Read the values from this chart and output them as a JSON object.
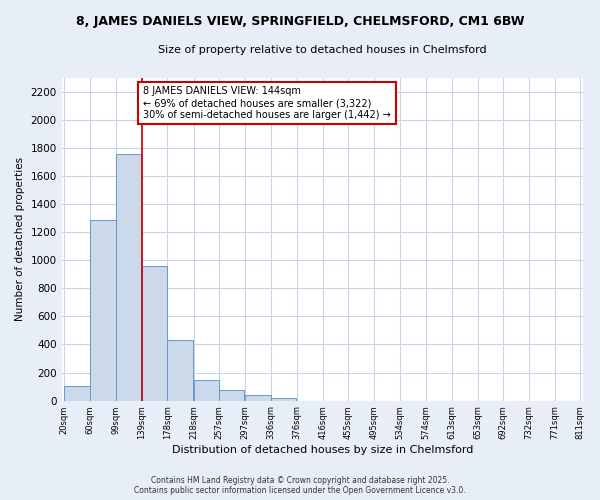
{
  "title_line1": "8, JAMES DANIELS VIEW, SPRINGFIELD, CHELMSFORD, CM1 6BW",
  "title_line2": "Size of property relative to detached houses in Chelmsford",
  "xlabel": "Distribution of detached houses by size in Chelmsford",
  "ylabel": "Number of detached properties",
  "bar_left_edges": [
    20,
    60,
    99,
    139,
    178,
    218,
    257,
    297,
    336,
    376,
    416,
    455,
    495,
    534,
    574,
    613,
    653,
    692,
    732,
    771
  ],
  "bar_heights": [
    105,
    1285,
    1760,
    960,
    430,
    150,
    75,
    40,
    20,
    0,
    0,
    0,
    0,
    0,
    0,
    0,
    0,
    0,
    0,
    0
  ],
  "bin_width": 39,
  "bar_color": "#ccd9ea",
  "bar_edge_color": "#6699cc",
  "reference_line_x": 139,
  "ylim": [
    0,
    2300
  ],
  "yticks": [
    0,
    200,
    400,
    600,
    800,
    1000,
    1200,
    1400,
    1600,
    1800,
    2000,
    2200
  ],
  "x_tick_labels": [
    "20sqm",
    "60sqm",
    "99sqm",
    "139sqm",
    "178sqm",
    "218sqm",
    "257sqm",
    "297sqm",
    "336sqm",
    "376sqm",
    "416sqm",
    "455sqm",
    "495sqm",
    "534sqm",
    "574sqm",
    "613sqm",
    "653sqm",
    "692sqm",
    "732sqm",
    "771sqm",
    "811sqm"
  ],
  "annotation_text": "8 JAMES DANIELS VIEW: 144sqm\n← 69% of detached houses are smaller (3,322)\n30% of semi-detached houses are larger (1,442) →",
  "annotation_box_color": "#ffffff",
  "annotation_box_edge_color": "#cc0000",
  "grid_color": "#c8d4e8",
  "bg_color": "#e8eef8",
  "plot_bg_color": "#ffffff",
  "footer_line1": "Contains HM Land Registry data © Crown copyright and database right 2025.",
  "footer_line2": "Contains public sector information licensed under the Open Government Licence v3.0."
}
